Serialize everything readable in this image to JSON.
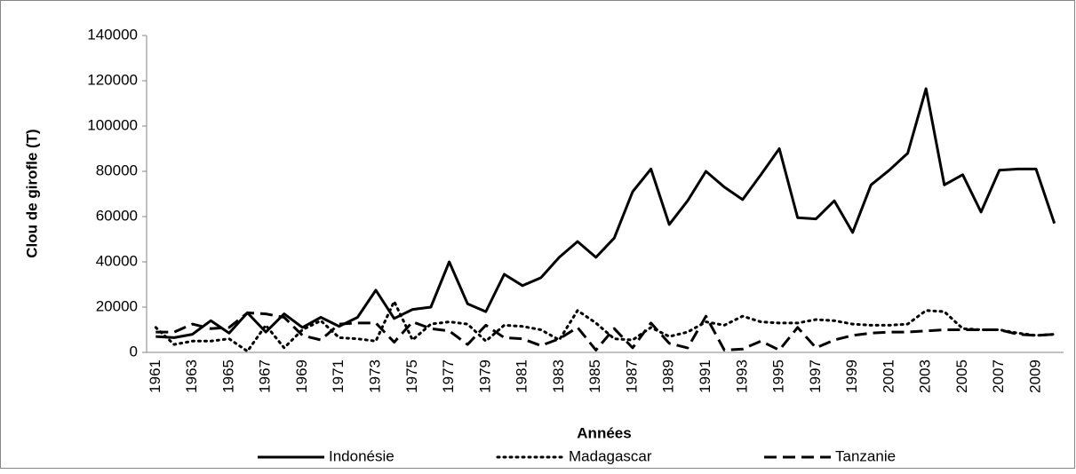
{
  "chart_data": {
    "type": "line",
    "xlabel": "Années",
    "ylabel": "Clou de girofle (T)",
    "categories": [
      "1961",
      null,
      "1963",
      null,
      "1965",
      null,
      "1967",
      null,
      "1969",
      null,
      "1971",
      null,
      "1973",
      null,
      "1975",
      null,
      "1977",
      null,
      "1979",
      null,
      "1981",
      null,
      "1983",
      null,
      "1985",
      null,
      "1987",
      null,
      "1989",
      null,
      "1991",
      null,
      "1993",
      null,
      "1995",
      null,
      "1997",
      null,
      "1999",
      null,
      "2001",
      null,
      "2003",
      null,
      "2005",
      null,
      "2007",
      null,
      "2009",
      null
    ],
    "series": [
      {
        "name": "Indonésie",
        "color": "#000000",
        "style": "solid",
        "values": [
          7000,
          6500,
          8000,
          14000,
          8500,
          17500,
          9000,
          17000,
          11000,
          15500,
          11500,
          15500,
          27500,
          15000,
          19000,
          20000,
          40000,
          21500,
          18000,
          34500,
          29500,
          33000,
          42000,
          49000,
          42000,
          50500,
          71000,
          81000,
          56500,
          67000,
          80000,
          73000,
          67500,
          78500,
          90000,
          59500,
          59000,
          67000,
          53000,
          74000,
          80500,
          88000,
          116500,
          74000,
          78500,
          62000,
          80500,
          81000,
          81000,
          57000
        ]
      },
      {
        "name": "Madagascar",
        "color": "#000000",
        "style": "dotted",
        "values": [
          11000,
          3500,
          5000,
          5000,
          6000,
          500,
          12000,
          2000,
          10000,
          14000,
          6500,
          6000,
          5000,
          22500,
          5500,
          12500,
          13500,
          12500,
          5000,
          12000,
          11500,
          10000,
          5500,
          18500,
          13000,
          6000,
          5500,
          11000,
          7000,
          9000,
          13500,
          12000,
          16000,
          13500,
          13000,
          13000,
          14500,
          14000,
          12500,
          12000,
          12000,
          12500,
          18500,
          18000,
          10500,
          10000,
          10000,
          8500,
          7500,
          8000
        ]
      },
      {
        "name": "Tanzanie",
        "color": "#000000",
        "style": "dashed",
        "values": [
          9000,
          9000,
          12500,
          10500,
          11000,
          17500,
          17000,
          15500,
          7500,
          5500,
          12500,
          13000,
          13000,
          4500,
          13500,
          10500,
          9500,
          3500,
          12000,
          6500,
          6000,
          3000,
          6000,
          11000,
          1000,
          10500,
          2000,
          13000,
          4000,
          2000,
          16000,
          1000,
          1500,
          5000,
          1000,
          11000,
          2000,
          5500,
          7500,
          8500,
          9000,
          9000,
          9500,
          10000,
          10000,
          10000,
          10000,
          8000,
          7500,
          8000
        ]
      }
    ],
    "ylim": [
      0,
      140000
    ],
    "yticks": [
      0,
      20000,
      40000,
      60000,
      80000,
      100000,
      120000,
      140000
    ],
    "grid": false,
    "legend": "bottom"
  }
}
